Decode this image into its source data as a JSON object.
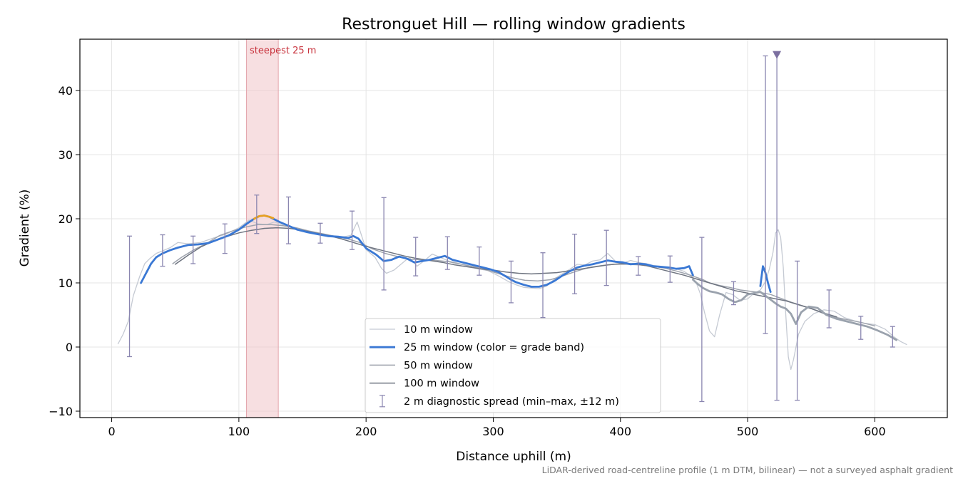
{
  "chart_data": {
    "type": "line",
    "title": "Restronguet Hill — rolling window gradients",
    "xlabel": "Distance uphill (m)",
    "ylabel": "Gradient (%)",
    "xlim": [
      -25,
      657
    ],
    "ylim": [
      -11,
      48
    ],
    "x_ticks": [
      0,
      100,
      200,
      300,
      400,
      500,
      600
    ],
    "y_ticks": [
      -10,
      0,
      10,
      20,
      30,
      40
    ],
    "x_tick_labels": [
      "0",
      "100",
      "200",
      "300",
      "400",
      "500",
      "600"
    ],
    "y_tick_labels": [
      "−10",
      "0",
      "10",
      "20",
      "30",
      "40"
    ],
    "grid": true,
    "legend_position": "lower-center",
    "footnote": "LiDAR-derived road-centreline profile (1 m DTM, bilinear) — not a surveyed asphalt gradient",
    "highlight": {
      "x_start": 106,
      "x_end": 131,
      "label": "steepest 25 m",
      "color": "#f0c4c8"
    },
    "marker": {
      "x": 523,
      "y": 45.6,
      "shape": "triangle-down",
      "color": "#7b6fa0"
    },
    "series": [
      {
        "name": "10 m window",
        "color": "#c5cad3",
        "width": 1.3,
        "x": [
          5,
          9,
          13,
          17,
          22,
          26,
          30,
          35,
          40,
          46,
          52,
          60,
          70,
          80,
          90,
          100,
          108,
          115,
          122,
          128,
          135,
          142,
          150,
          160,
          170,
          180,
          188,
          193,
          200,
          207,
          212,
          216,
          222,
          228,
          234,
          240,
          246,
          252,
          258,
          265,
          272,
          280,
          288,
          296,
          304,
          312,
          318,
          324,
          330,
          336,
          342,
          348,
          354,
          360,
          366,
          372,
          378,
          384,
          390,
          396,
          402,
          408,
          414,
          420,
          426,
          432,
          438,
          444,
          450,
          456,
          460,
          463,
          466,
          470,
          474,
          478,
          483,
          488,
          494,
          500,
          505,
          510,
          514,
          517,
          520,
          522,
          524,
          526,
          528,
          530,
          532,
          534,
          536,
          540,
          545,
          552,
          560,
          568,
          576,
          584,
          592,
          600,
          608,
          615,
          620,
          625
        ],
        "y": [
          0.5,
          2,
          4,
          8,
          11,
          13,
          13.8,
          14.6,
          15,
          15.5,
          16.3,
          16.1,
          16.3,
          17,
          17.6,
          18.6,
          19.8,
          19.2,
          19.1,
          19.5,
          19,
          18.7,
          18.2,
          17.7,
          17.4,
          17.1,
          17.4,
          19.5,
          15.2,
          14,
          12.3,
          11.5,
          12,
          13,
          14,
          12.6,
          13.5,
          14.5,
          14,
          13.4,
          13.1,
          12.6,
          12.2,
          11.9,
          11.1,
          10.2,
          9.7,
          9.3,
          9.2,
          9.1,
          9.5,
          10.6,
          11.4,
          12.1,
          12.9,
          12.8,
          13.4,
          13.6,
          14.6,
          13.4,
          13.1,
          13.5,
          13.2,
          13,
          12.7,
          12.6,
          12.4,
          12.2,
          11.8,
          11,
          9.8,
          8.2,
          5.5,
          2.5,
          1.6,
          5,
          8.5,
          8.2,
          7.3,
          7.5,
          8.4,
          8.9,
          10.2,
          12.1,
          14.8,
          17.8,
          18.3,
          17.1,
          12.5,
          5,
          -1.5,
          -3.5,
          -2,
          2,
          4,
          5.2,
          5.8,
          5.6,
          4.6,
          4.1,
          3.7,
          3.5,
          2.8,
          1.6,
          0.9,
          0.4
        ]
      },
      {
        "name": "25 m window (color = grade band)",
        "color": "#3a78d4",
        "width": 2.8,
        "x": [
          23,
          27,
          31,
          35,
          40,
          46,
          52,
          60,
          68,
          76,
          84,
          92,
          100,
          106,
          112,
          116,
          120,
          124,
          128,
          132,
          138,
          146,
          154,
          162,
          170,
          178,
          186,
          190,
          194,
          200,
          208,
          214,
          220,
          226,
          232,
          238,
          244,
          250,
          256,
          262,
          268,
          274,
          280,
          286,
          292,
          298,
          304,
          310,
          314,
          318,
          324,
          330,
          336,
          342,
          348,
          354,
          360,
          366,
          372,
          378,
          384,
          390,
          396,
          402,
          408,
          414,
          420,
          426,
          432,
          438,
          444,
          450,
          454,
          457
        ],
        "y": [
          10,
          11.5,
          13,
          14,
          14.6,
          15.1,
          15.5,
          15.9,
          16,
          16.2,
          16.8,
          17.4,
          18.3,
          19.2,
          20,
          20.4,
          20.5,
          20.3,
          19.9,
          19.5,
          19,
          18.3,
          17.9,
          17.6,
          17.3,
          17.2,
          17,
          17.3,
          16.9,
          15.4,
          14.4,
          13.4,
          13.6,
          14.1,
          13.8,
          13.2,
          13.4,
          13.6,
          13.9,
          14.2,
          13.6,
          13.3,
          13,
          12.7,
          12.4,
          12.1,
          11.7,
          11,
          10.5,
          10.1,
          9.7,
          9.4,
          9.4,
          9.7,
          10.3,
          11.1,
          11.8,
          12.4,
          12.7,
          12.9,
          13.2,
          13.5,
          13.3,
          13.2,
          12.9,
          13,
          12.9,
          12.6,
          12.5,
          12.4,
          12.2,
          12.3,
          12.6,
          11.2
        ]
      },
      {
        "name": "25 m window (continuation)",
        "color": "#9aa2ad",
        "width": 2.8,
        "x": [
          457,
          461,
          465,
          470,
          475,
          480,
          485,
          490,
          495,
          500,
          505,
          510,
          514,
          518,
          522,
          526,
          530,
          534,
          538,
          542,
          548,
          555,
          562,
          570,
          578,
          586,
          594,
          602,
          610,
          617
        ],
        "y": [
          10.5,
          9.8,
          9.2,
          8.7,
          8.5,
          8.2,
          7.5,
          7,
          7.3,
          8.2,
          8.4,
          8.6,
          8,
          7.4,
          6.8,
          6.3,
          6,
          5.2,
          3.6,
          5.4,
          6.3,
          6.1,
          5,
          4.4,
          4,
          3.6,
          3.2,
          2.6,
          1.9,
          1.1
        ]
      },
      {
        "name": "25 m window (peak band)",
        "color": "#e8a020",
        "width": 2.8,
        "x": [
          112,
          116,
          120,
          124,
          127
        ],
        "y": [
          20,
          20.4,
          20.5,
          20.3,
          20.1
        ]
      },
      {
        "name": "25 m window (spike)",
        "color": "#3a78d4",
        "width": 2.8,
        "x": [
          510,
          512,
          514,
          516,
          518
        ],
        "y": [
          9.5,
          12.6,
          11.6,
          10,
          8.6
        ]
      },
      {
        "name": "50 m window",
        "color": "#9ea3ad",
        "width": 1.5,
        "x": [
          48,
          55,
          65,
          75,
          85,
          95,
          105,
          115,
          125,
          135,
          145,
          155,
          165,
          175,
          185,
          195,
          205,
          215,
          225,
          235,
          245,
          255,
          265,
          275,
          285,
          295,
          305,
          315,
          325,
          335,
          345,
          355,
          365,
          375,
          385,
          395,
          405,
          415,
          425,
          435,
          445,
          455,
          465,
          470,
          478,
          486,
          494,
          502,
          510,
          518,
          526,
          534,
          542,
          550,
          560,
          570,
          580,
          590,
          600
        ],
        "y": [
          13,
          14,
          15.2,
          16.2,
          17.4,
          18.1,
          18.7,
          19.1,
          19.1,
          18.9,
          18.6,
          18.1,
          17.7,
          17.3,
          16.9,
          16.3,
          15.3,
          14.6,
          14.1,
          13.7,
          13.6,
          13.5,
          13.3,
          12.9,
          12.5,
          12,
          11.4,
          10.8,
          10.4,
          10.3,
          10.5,
          11.1,
          11.8,
          12.4,
          12.7,
          12.9,
          12.9,
          12.8,
          12.6,
          12.3,
          11.8,
          11.2,
          10.5,
          10,
          9.6,
          9.3,
          8.9,
          8.7,
          8.5,
          8.2,
          7.6,
          7,
          6.5,
          6,
          5.2,
          4.6,
          4.2,
          3.8,
          3.3
        ]
      },
      {
        "name": "100 m window",
        "color": "#6e7480",
        "width": 1.5,
        "x": [
          50,
          60,
          70,
          80,
          90,
          100,
          110,
          120,
          130,
          140,
          150,
          160,
          170,
          180,
          190,
          200,
          210,
          220,
          230,
          240,
          250,
          260,
          270,
          280,
          290,
          300,
          310,
          320,
          330,
          340,
          350,
          360,
          370,
          380,
          390,
          400,
          410,
          420,
          430,
          440,
          450,
          460,
          470,
          480,
          490,
          500,
          510,
          520,
          530,
          540,
          550,
          560,
          570
        ],
        "y": [
          12.9,
          14.3,
          15.6,
          16.5,
          17.2,
          17.8,
          18.2,
          18.5,
          18.6,
          18.5,
          18.2,
          17.8,
          17.4,
          16.9,
          16.3,
          15.7,
          15.2,
          14.7,
          14.2,
          13.8,
          13.5,
          13.2,
          12.8,
          12.5,
          12.2,
          12,
          11.7,
          11.5,
          11.4,
          11.5,
          11.6,
          11.9,
          12.2,
          12.5,
          12.8,
          13,
          13,
          12.7,
          12.2,
          11.7,
          11.2,
          10.6,
          10,
          9.4,
          8.8,
          8.4,
          8,
          7.6,
          7.2,
          6.6,
          6,
          5.3,
          4.7
        ]
      }
    ],
    "error_bars": {
      "name": "2 m diagnostic spread (min–max, ±12 m)",
      "color": "#8a86b0",
      "points": [
        {
          "x": 14,
          "lo": -1.5,
          "hi": 17.3
        },
        {
          "x": 40,
          "lo": 12.6,
          "hi": 17.5
        },
        {
          "x": 64,
          "lo": 13,
          "hi": 17.3
        },
        {
          "x": 89,
          "lo": 14.6,
          "hi": 19.2
        },
        {
          "x": 114,
          "lo": 17.7,
          "hi": 23.7
        },
        {
          "x": 139,
          "lo": 16.1,
          "hi": 23.4
        },
        {
          "x": 164,
          "lo": 16.2,
          "hi": 19.3
        },
        {
          "x": 189,
          "lo": 15.2,
          "hi": 21.2
        },
        {
          "x": 214,
          "lo": 8.9,
          "hi": 23.3
        },
        {
          "x": 239,
          "lo": 11.1,
          "hi": 17.1
        },
        {
          "x": 264,
          "lo": 12.1,
          "hi": 17.2
        },
        {
          "x": 289,
          "lo": 11.2,
          "hi": 15.6
        },
        {
          "x": 314,
          "lo": 6.9,
          "hi": 13.4
        },
        {
          "x": 339,
          "lo": 4.6,
          "hi": 14.7
        },
        {
          "x": 364,
          "lo": 8.3,
          "hi": 17.6
        },
        {
          "x": 389,
          "lo": 9.6,
          "hi": 18.2
        },
        {
          "x": 414,
          "lo": 11.2,
          "hi": 14.1
        },
        {
          "x": 439,
          "lo": 10.1,
          "hi": 14.2
        },
        {
          "x": 464,
          "lo": -8.5,
          "hi": 17.1
        },
        {
          "x": 489,
          "lo": 6.6,
          "hi": 10.2
        },
        {
          "x": 514,
          "lo": 2.1,
          "hi": 45.4
        },
        {
          "x": 523,
          "lo": -8.3,
          "hi": 45.6
        },
        {
          "x": 539,
          "lo": -8.3,
          "hi": 13.4
        },
        {
          "x": 564,
          "lo": 3,
          "hi": 8.9
        },
        {
          "x": 589,
          "lo": 1.2,
          "hi": 4.8
        },
        {
          "x": 614,
          "lo": 0,
          "hi": 3.2
        }
      ]
    },
    "legend": [
      {
        "label": "10 m window",
        "kind": "line",
        "color": "#c5cad3",
        "width": 1.3
      },
      {
        "label": "25 m window (color = grade band)",
        "kind": "line",
        "color": "#3a78d4",
        "width": 2.8
      },
      {
        "label": "50 m window",
        "kind": "line",
        "color": "#9ea3ad",
        "width": 1.5
      },
      {
        "label": "100 m window",
        "kind": "line",
        "color": "#6e7480",
        "width": 1.5
      },
      {
        "label": "2 m diagnostic spread (min–max, ±12 m)",
        "kind": "errorbar",
        "color": "#8a86b0",
        "width": 1.2
      }
    ]
  }
}
